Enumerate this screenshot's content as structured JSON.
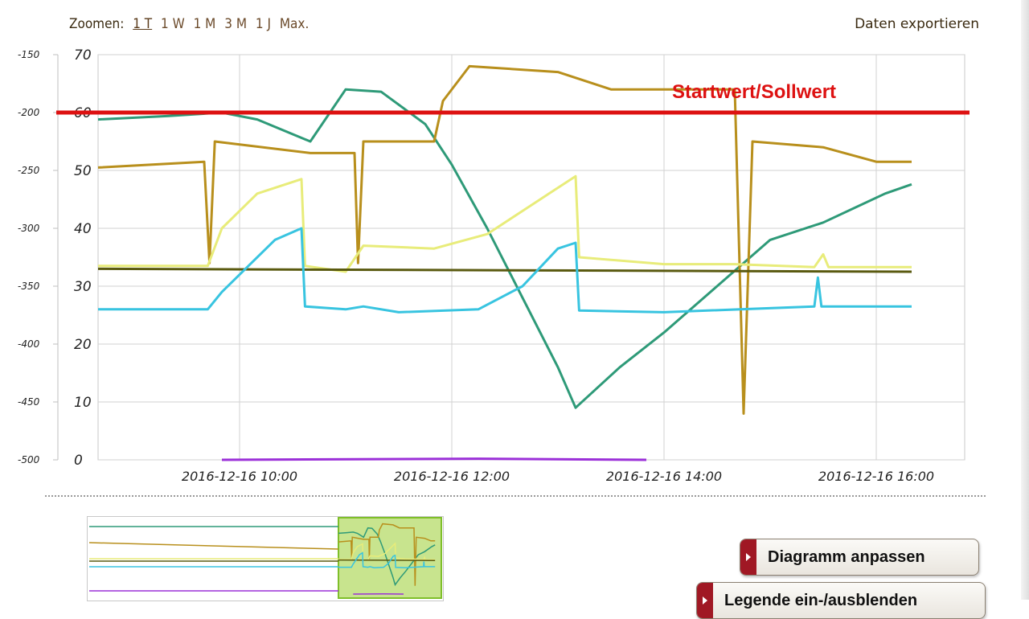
{
  "toolbar": {
    "zoom_label": "Zoomen:",
    "zoom_options": [
      "1 T",
      "1 W",
      "1 M",
      "3 M",
      "1 J",
      "Max."
    ],
    "active_zoom": "1 T",
    "export_label": "Daten exportieren"
  },
  "chart_data": {
    "type": "line",
    "title": "",
    "grid": true,
    "x_type": "datetime",
    "xlim": [
      "2016-12-16 08:40",
      "2016-12-16 16:50"
    ],
    "x_ticks": [
      "2016-12-16 10:00",
      "2016-12-16 12:00",
      "2016-12-16 14:00",
      "2016-12-16 16:00"
    ],
    "y_left": {
      "ylim": [
        -500,
        -150
      ],
      "ticks": [
        -500,
        -450,
        -400,
        -350,
        -300,
        -250,
        -200,
        -150
      ]
    },
    "y_right": {
      "ylim": [
        0,
        70
      ],
      "ticks": [
        0,
        10,
        20,
        30,
        40,
        50,
        60,
        70
      ]
    },
    "reference_line": {
      "label": "Startwert/Sollwert",
      "axis": "left",
      "value": -200,
      "color": "#dd1111"
    },
    "series": [
      {
        "color": "#2e9a78",
        "axis": "left",
        "points": [
          [
            "2016-12-16 08:40",
            -206
          ],
          [
            "2016-12-16 09:20",
            -203
          ],
          [
            "2016-12-16 09:50",
            -200
          ],
          [
            "2016-12-16 10:10",
            -206
          ],
          [
            "2016-12-16 10:40",
            -225
          ],
          [
            "2016-12-16 11:00",
            -180
          ],
          [
            "2016-12-16 11:20",
            -182
          ],
          [
            "2016-12-16 11:45",
            -210
          ],
          [
            "2016-12-16 12:00",
            -245
          ],
          [
            "2016-12-16 12:20",
            -300
          ],
          [
            "2016-12-16 12:40",
            -360
          ],
          [
            "2016-12-16 13:00",
            -420
          ],
          [
            "2016-12-16 13:10",
            -455
          ],
          [
            "2016-12-16 13:35",
            -420
          ],
          [
            "2016-12-16 14:00",
            -390
          ],
          [
            "2016-12-16 14:30",
            -350
          ],
          [
            "2016-12-16 15:00",
            -310
          ],
          [
            "2016-12-16 15:30",
            -295
          ],
          [
            "2016-12-16 16:05",
            -270
          ],
          [
            "2016-12-16 16:20",
            -262
          ]
        ]
      },
      {
        "color": "#b88f1c",
        "axis": "right",
        "points": [
          [
            "2016-12-16 08:40",
            50.5
          ],
          [
            "2016-12-16 09:40",
            51.5
          ],
          [
            "2016-12-16 09:43",
            34
          ],
          [
            "2016-12-16 09:46",
            55
          ],
          [
            "2016-12-16 10:40",
            53
          ],
          [
            "2016-12-16 11:05",
            53
          ],
          [
            "2016-12-16 11:07",
            34
          ],
          [
            "2016-12-16 11:10",
            55
          ],
          [
            "2016-12-16 11:50",
            55
          ],
          [
            "2016-12-16 11:55",
            62
          ],
          [
            "2016-12-16 12:10",
            68
          ],
          [
            "2016-12-16 13:00",
            67
          ],
          [
            "2016-12-16 13:30",
            64
          ],
          [
            "2016-12-16 14:40",
            64
          ],
          [
            "2016-12-16 14:45",
            8
          ],
          [
            "2016-12-16 14:50",
            55
          ],
          [
            "2016-12-16 15:30",
            54
          ],
          [
            "2016-12-16 16:00",
            51.5
          ],
          [
            "2016-12-16 16:20",
            51.5
          ]
        ]
      },
      {
        "color": "#e8ec7a",
        "axis": "right",
        "points": [
          [
            "2016-12-16 08:40",
            33.5
          ],
          [
            "2016-12-16 09:42",
            33.5
          ],
          [
            "2016-12-16 09:50",
            40
          ],
          [
            "2016-12-16 10:10",
            46
          ],
          [
            "2016-12-16 10:35",
            48.5
          ],
          [
            "2016-12-16 10:37",
            33.5
          ],
          [
            "2016-12-16 11:00",
            32.5
          ],
          [
            "2016-12-16 11:10",
            37
          ],
          [
            "2016-12-16 11:50",
            36.5
          ],
          [
            "2016-12-16 12:20",
            39
          ],
          [
            "2016-12-16 12:55",
            46
          ],
          [
            "2016-12-16 13:10",
            49
          ],
          [
            "2016-12-16 13:12",
            35
          ],
          [
            "2016-12-16 14:00",
            33.8
          ],
          [
            "2016-12-16 14:40",
            33.8
          ],
          [
            "2016-12-16 15:25",
            33.3
          ],
          [
            "2016-12-16 15:30",
            35.5
          ],
          [
            "2016-12-16 15:33",
            33.3
          ],
          [
            "2016-12-16 16:20",
            33.3
          ]
        ]
      },
      {
        "color": "#5a5a10",
        "axis": "right",
        "points": [
          [
            "2016-12-16 08:40",
            33
          ],
          [
            "2016-12-16 16:20",
            32.5
          ]
        ]
      },
      {
        "color": "#38c4e0",
        "axis": "right",
        "points": [
          [
            "2016-12-16 08:40",
            26
          ],
          [
            "2016-12-16 09:42",
            26
          ],
          [
            "2016-12-16 09:50",
            29
          ],
          [
            "2016-12-16 10:20",
            38
          ],
          [
            "2016-12-16 10:35",
            40
          ],
          [
            "2016-12-16 10:37",
            26.5
          ],
          [
            "2016-12-16 11:00",
            26
          ],
          [
            "2016-12-16 11:10",
            26.5
          ],
          [
            "2016-12-16 11:30",
            25.5
          ],
          [
            "2016-12-16 12:15",
            26
          ],
          [
            "2016-12-16 12:40",
            30
          ],
          [
            "2016-12-16 13:00",
            36.5
          ],
          [
            "2016-12-16 13:10",
            37.5
          ],
          [
            "2016-12-16 13:12",
            25.8
          ],
          [
            "2016-12-16 14:00",
            25.5
          ],
          [
            "2016-12-16 15:25",
            26.5
          ],
          [
            "2016-12-16 15:27",
            31.5
          ],
          [
            "2016-12-16 15:29",
            26.5
          ],
          [
            "2016-12-16 16:20",
            26.5
          ]
        ]
      },
      {
        "color": "#9b30d8",
        "axis": "left",
        "points": [
          [
            "2016-12-16 09:50",
            -500
          ],
          [
            "2016-12-16 12:15",
            -499
          ],
          [
            "2016-12-16 13:50",
            -500
          ]
        ]
      }
    ]
  },
  "navigator": {
    "selection_color": "#9acd32"
  },
  "buttons": {
    "customize_label": "Diagramm anpassen",
    "legend_label": "Legende ein-/ausblenden"
  }
}
